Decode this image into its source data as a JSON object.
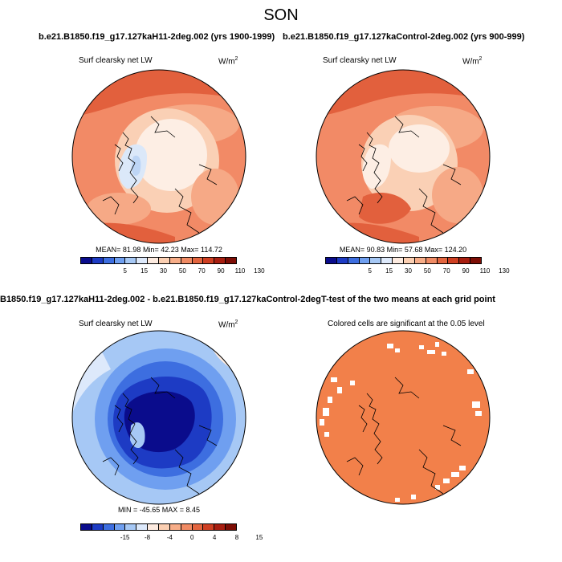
{
  "season": "SON",
  "panels": [
    {
      "title": "b.e21.B1850.f19_g17.127kaH11-2deg.002 (yrs 1900-1999)",
      "variable": "Surf clearsky net LW",
      "units": "W/m",
      "units_exp": "2",
      "stats_text": "MEAN=  81.98  Min=  42.23  Max= 114.72",
      "colorbar_labels": [
        "5",
        "15",
        "30",
        "50",
        "70",
        "90",
        "110",
        "130"
      ]
    },
    {
      "title": "b.e21.B1850.f19_g17.127kaControl-2deg.002 (yrs 900-999)",
      "variable": "Surf clearsky net LW",
      "units": "W/m",
      "units_exp": "2",
      "stats_text": "MEAN=  90.83  Min=  57.68  Max= 124.20",
      "colorbar_labels": [
        "5",
        "15",
        "30",
        "50",
        "70",
        "90",
        "110",
        "130"
      ]
    },
    {
      "title": "B1850.f19_g17.127kaH11-2deg.002 - b.e21.B1850.f19_g17.127kaControl-2deg.002",
      "variable": "Surf clearsky net LW",
      "units": "W/m",
      "units_exp": "2",
      "stats_text": "MIN = -45.65 MAX =  8.45",
      "colorbar_labels": [
        "-15",
        "-8",
        "-4",
        "0",
        "4",
        "8",
        "15"
      ]
    },
    {
      "title": "T-test of the two means at each grid point",
      "variable": "Colored cells are significant at the 0.05 level"
    }
  ],
  "colors": {
    "top_scale": [
      "#0a0c8c",
      "#1d3bc4",
      "#3d6ee0",
      "#6f9ff0",
      "#a6c8f5",
      "#dde9fb",
      "#fdebe0",
      "#fbcfb2",
      "#f7ad88",
      "#f08b64",
      "#e3653f",
      "#cf3f22",
      "#a81e10",
      "#7d0d05"
    ],
    "diff_scale": [
      "#0a0c8c",
      "#1d3bc4",
      "#3d6ee0",
      "#6f9ff0",
      "#a6c8f5",
      "#dde9fb",
      "#fdebe0",
      "#fbcfb2",
      "#f7ad88",
      "#f08b64",
      "#e3653f",
      "#cf3f22",
      "#a81e10",
      "#7d0d05"
    ],
    "ttest_fill": "#f2804a"
  }
}
